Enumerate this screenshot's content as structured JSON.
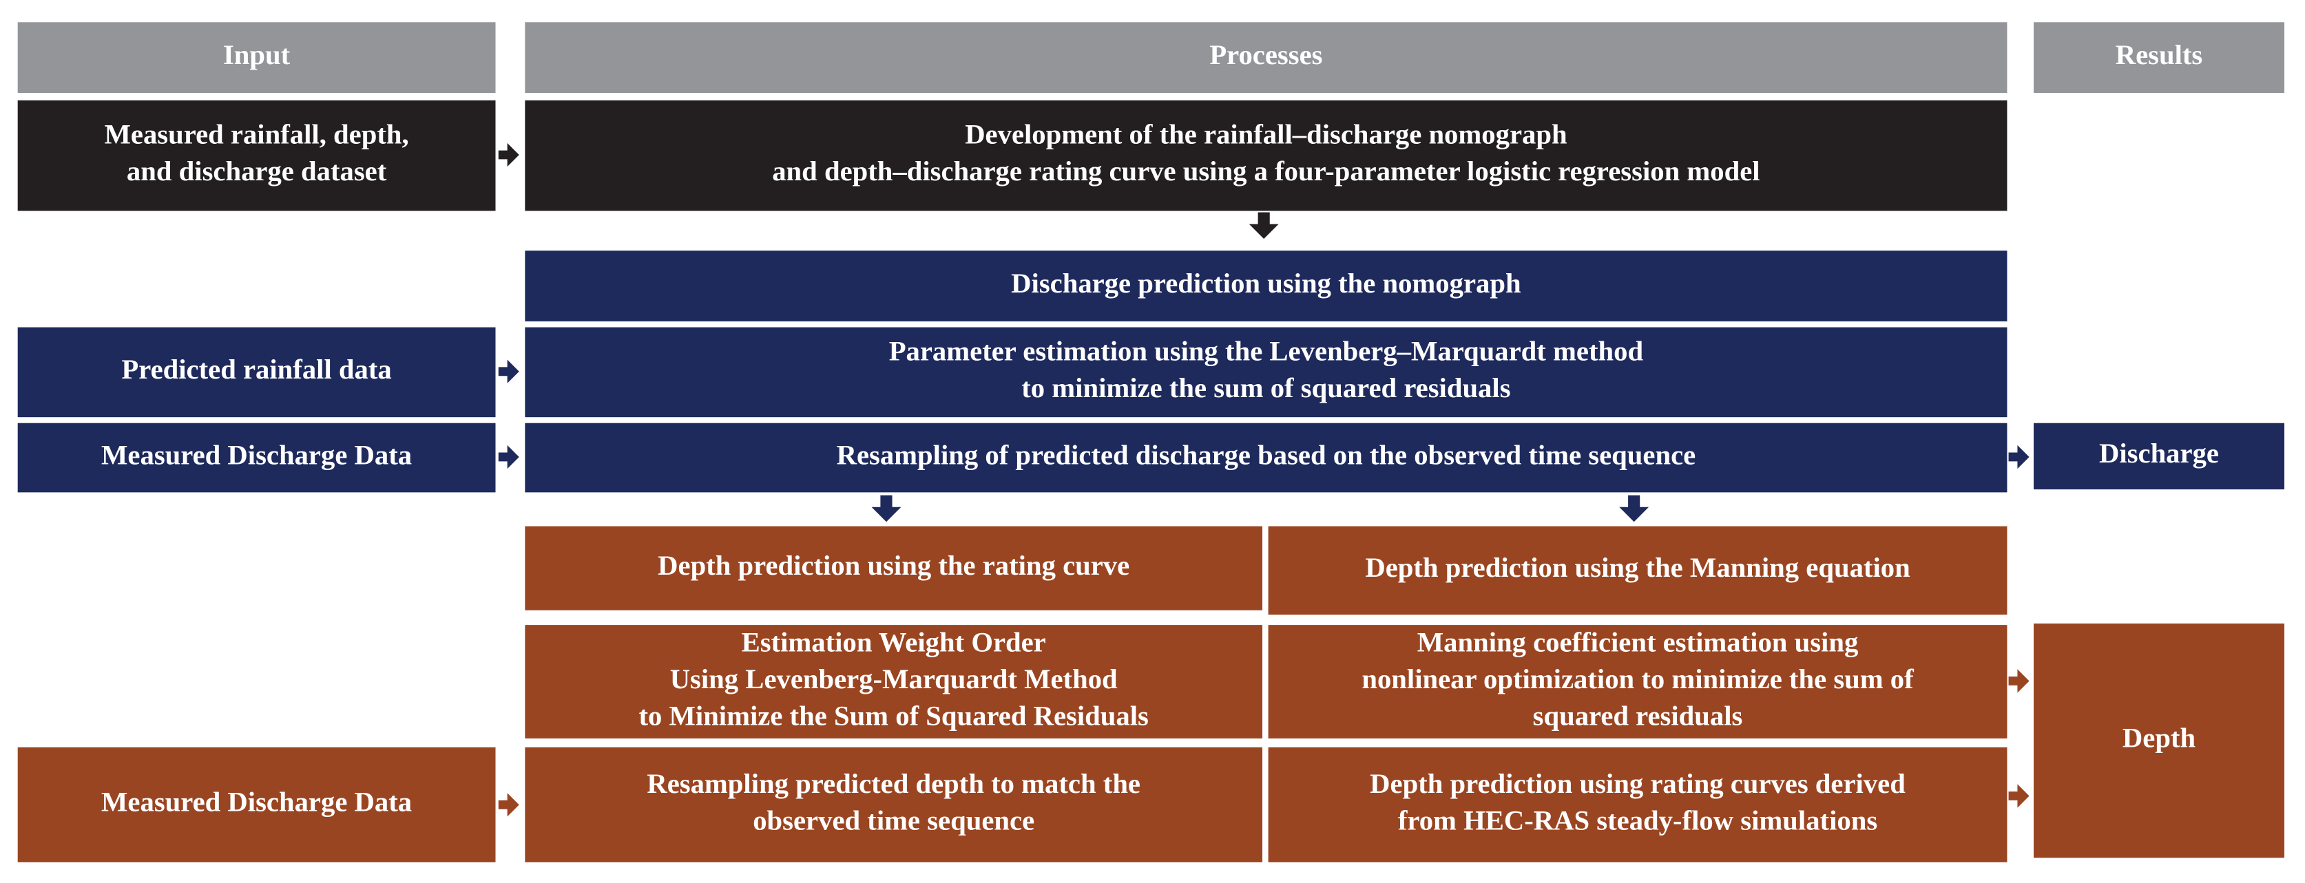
{
  "headers": {
    "input": "Input",
    "processes": "Processes",
    "results": "Results"
  },
  "inputs": [
    [
      "Measured rainfall, depth,",
      "and discharge dataset"
    ],
    [
      "Predicted rainfall data"
    ],
    [
      "Measured Discharge Data"
    ],
    [
      "Measured Discharge Data"
    ]
  ],
  "processes": [
    [
      "Development of the rainfall–discharge nomograph",
      "and depth–discharge rating curve using a four-parameter logistic regression model"
    ],
    [
      "Discharge prediction using the nomograph"
    ],
    [
      "Parameter estimation using the Levenberg–Marquardt method",
      "to minimize the sum of squared residuals"
    ],
    [
      "Resampling of predicted discharge based on the observed time sequence"
    ],
    [
      "Depth prediction using the rating curve"
    ],
    [
      "Depth prediction using the Manning equation"
    ],
    [
      "Estimation Weight Order",
      "Using Levenberg-Marquardt Method",
      "to Minimize the Sum of Squared Residuals"
    ],
    [
      "Manning coefficient estimation using",
      "nonlinear optimization to minimize the sum of",
      "squared residuals"
    ],
    [
      "Resampling predicted depth to match the",
      "observed time sequence"
    ],
    [
      "Depth prediction using rating curves derived",
      "from HEC-RAS steady-flow simulations"
    ]
  ],
  "results": [
    [
      "Discharge"
    ],
    [
      "Depth"
    ]
  ]
}
